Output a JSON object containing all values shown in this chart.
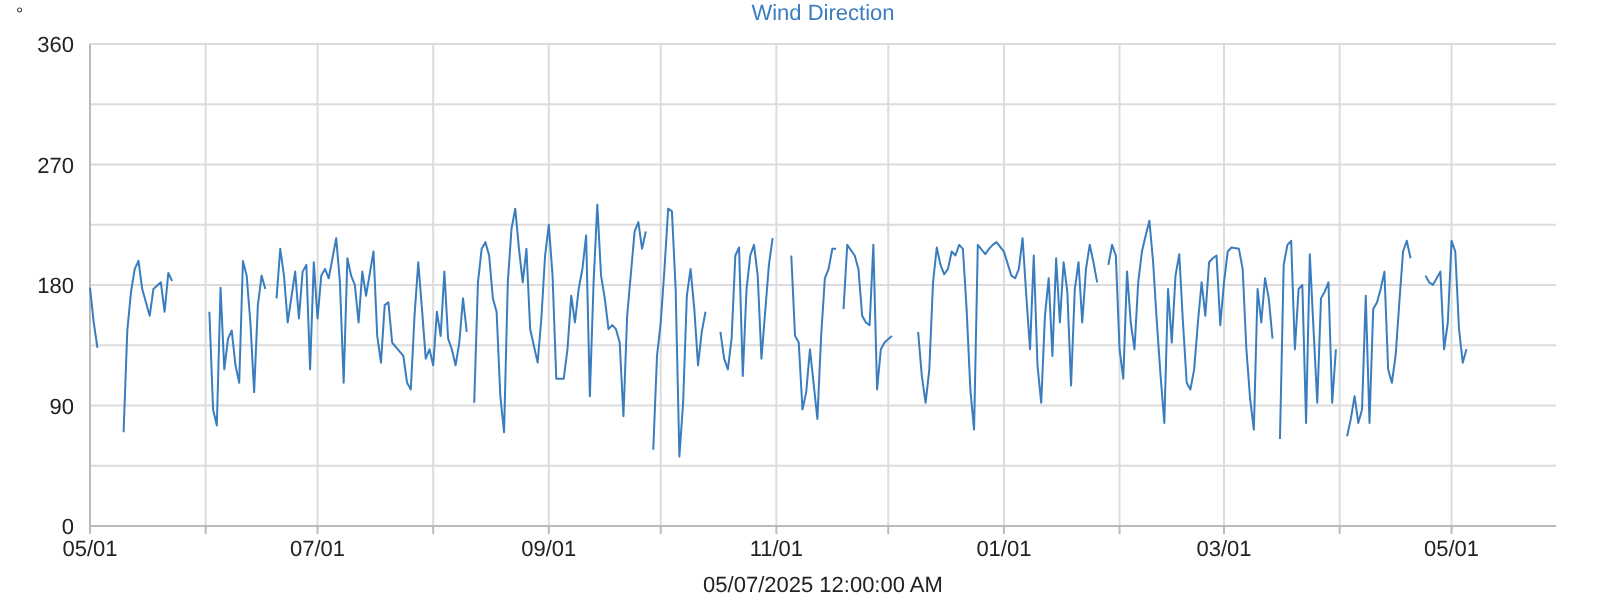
{
  "chart_data": {
    "type": "line",
    "title": "Wind Direction",
    "ylabel": "°",
    "xlabel": "05/07/2025 12:00:00 AM",
    "grid": true,
    "marker": "none",
    "line_style": "solid",
    "ylim": [
      0,
      360
    ],
    "yticks": [
      0,
      {
        "value": 45,
        "label": null
      },
      90,
      {
        "value": 135,
        "label": null
      },
      180,
      {
        "value": 225,
        "label": null
      },
      270,
      {
        "value": 315,
        "label": null
      },
      360
    ],
    "xlim": [
      "2024-05-01",
      "2025-05-29"
    ],
    "xticks": [
      {
        "value": "2024-05-01",
        "label": "05/01"
      },
      {
        "value": "2024-06-01",
        "label": null
      },
      {
        "value": "2024-07-01",
        "label": "07/01"
      },
      {
        "value": "2024-08-01",
        "label": null
      },
      {
        "value": "2024-09-01",
        "label": "09/01"
      },
      {
        "value": "2024-10-01",
        "label": null
      },
      {
        "value": "2024-11-01",
        "label": "11/01"
      },
      {
        "value": "2024-12-01",
        "label": null
      },
      {
        "value": "2025-01-01",
        "label": "01/01"
      },
      {
        "value": "2025-02-01",
        "label": null
      },
      {
        "value": "2025-03-01",
        "label": "03/01"
      },
      {
        "value": "2025-04-01",
        "label": null
      },
      {
        "value": "2025-05-01",
        "label": "05/01"
      }
    ],
    "series": [
      {
        "color": "#3a7dbf",
        "x": [
          "2024-05-01",
          "2024-05-02",
          "2024-05-03",
          "2024-05-07",
          "2024-05-10",
          "2024-05-11",
          "2024-05-12",
          "2024-05-13",
          "2024-05-14",
          "2024-05-15",
          "2024-05-17",
          "2024-05-18",
          "2024-05-20",
          "2024-05-21",
          "2024-05-22",
          "2024-05-23",
          "2024-05-28",
          "2024-06-02",
          "2024-06-03",
          "2024-06-04",
          "2024-06-05",
          "2024-06-06",
          "2024-06-07",
          "2024-06-08",
          "2024-06-09",
          "2024-06-10",
          "2024-06-11",
          "2024-06-12",
          "2024-06-13",
          "2024-06-14",
          "2024-06-15",
          "2024-06-16",
          "2024-06-17",
          "2024-06-19",
          "2024-06-20",
          "2024-06-21",
          "2024-06-22",
          "2024-06-23",
          "2024-06-25",
          "2024-06-26",
          "2024-06-27",
          "2024-06-28",
          "2024-06-29",
          "2024-06-30",
          "2024-07-01",
          "2024-07-02",
          "2024-07-03",
          "2024-07-04",
          "2024-07-06",
          "2024-07-07",
          "2024-07-08",
          "2024-07-09",
          "2024-07-10",
          "2024-07-11",
          "2024-07-12",
          "2024-07-13",
          "2024-07-14",
          "2024-07-16",
          "2024-07-17",
          "2024-07-18",
          "2024-07-19",
          "2024-07-20",
          "2024-07-21",
          "2024-07-24",
          "2024-07-25",
          "2024-07-26",
          "2024-07-27",
          "2024-07-28",
          "2024-07-29",
          "2024-07-30",
          "2024-07-31",
          "2024-08-01",
          "2024-08-02",
          "2024-08-03",
          "2024-08-04",
          "2024-08-05",
          "2024-08-06",
          "2024-08-07",
          "2024-08-08",
          "2024-08-09",
          "2024-08-10",
          "2024-08-11",
          "2024-08-12",
          "2024-08-13",
          "2024-08-14",
          "2024-08-15",
          "2024-08-16",
          "2024-08-17",
          "2024-08-18",
          "2024-08-19",
          "2024-08-20",
          "2024-08-21",
          "2024-08-22",
          "2024-08-23",
          "2024-08-24",
          "2024-08-25",
          "2024-08-26",
          "2024-08-27",
          "2024-08-29",
          "2024-08-30",
          "2024-08-31",
          "2024-09-01",
          "2024-09-02",
          "2024-09-03",
          "2024-09-05",
          "2024-09-06",
          "2024-09-07",
          "2024-09-08",
          "2024-09-09",
          "2024-09-10",
          "2024-09-11",
          "2024-09-12",
          "2024-09-13",
          "2024-09-14",
          "2024-09-15",
          "2024-09-16",
          "2024-09-17",
          "2024-09-18",
          "2024-09-19",
          "2024-09-20",
          "2024-09-21",
          "2024-09-22",
          "2024-09-24",
          "2024-09-25",
          "2024-09-26",
          "2024-09-27",
          "2024-09-28",
          "2024-09-29",
          "2024-09-30",
          "2024-10-01",
          "2024-10-02",
          "2024-10-03",
          "2024-10-04",
          "2024-10-05",
          "2024-10-06",
          "2024-10-07",
          "2024-10-08",
          "2024-10-09",
          "2024-10-10",
          "2024-10-11",
          "2024-10-12",
          "2024-10-13",
          "2024-10-15",
          "2024-10-17",
          "2024-10-18",
          "2024-10-19",
          "2024-10-20",
          "2024-10-21",
          "2024-10-22",
          "2024-10-23",
          "2024-10-24",
          "2024-10-25",
          "2024-10-26",
          "2024-10-27",
          "2024-10-28",
          "2024-10-30",
          "2024-10-31",
          "2024-11-02",
          "2024-11-05",
          "2024-11-06",
          "2024-11-07",
          "2024-11-08",
          "2024-11-09",
          "2024-11-10",
          "2024-11-12",
          "2024-11-13",
          "2024-11-14",
          "2024-11-15",
          "2024-11-16",
          "2024-11-17",
          "2024-11-18",
          "2024-11-19",
          "2024-11-20",
          "2024-11-22",
          "2024-11-23",
          "2024-11-24",
          "2024-11-25",
          "2024-11-26",
          "2024-11-27",
          "2024-11-28",
          "2024-11-29",
          "2024-11-30",
          "2024-12-02",
          "2024-12-05",
          "2024-12-09",
          "2024-12-10",
          "2024-12-11",
          "2024-12-12",
          "2024-12-13",
          "2024-12-14",
          "2024-12-15",
          "2024-12-16",
          "2024-12-17",
          "2024-12-18",
          "2024-12-19",
          "2024-12-20",
          "2024-12-21",
          "2024-12-22",
          "2024-12-23",
          "2024-12-24",
          "2024-12-25",
          "2024-12-27",
          "2024-12-28",
          "2024-12-29",
          "2024-12-30",
          "2025-01-01",
          "2025-01-03",
          "2025-01-04",
          "2025-01-05",
          "2025-01-06",
          "2025-01-07",
          "2025-01-08",
          "2025-01-09",
          "2025-01-10",
          "2025-01-11",
          "2025-01-12",
          "2025-01-13",
          "2025-01-14",
          "2025-01-15",
          "2025-01-16",
          "2025-01-17",
          "2025-01-18",
          "2025-01-19",
          "2025-01-20",
          "2025-01-21",
          "2025-01-22",
          "2025-01-23",
          "2025-01-24",
          "2025-01-25",
          "2025-01-26",
          "2025-01-28",
          "2025-01-29",
          "2025-01-30",
          "2025-01-31",
          "2025-02-01",
          "2025-02-02",
          "2025-02-03",
          "2025-02-04",
          "2025-02-05",
          "2025-02-06",
          "2025-02-07",
          "2025-02-08",
          "2025-02-09",
          "2025-02-10",
          "2025-02-11",
          "2025-02-12",
          "2025-02-13",
          "2025-02-14",
          "2025-02-15",
          "2025-02-16",
          "2025-02-17",
          "2025-02-18",
          "2025-02-19",
          "2025-02-20",
          "2025-02-21",
          "2025-02-22",
          "2025-02-23",
          "2025-02-24",
          "2025-02-25",
          "2025-02-26",
          "2025-02-27",
          "2025-02-28",
          "2025-03-01",
          "2025-03-02",
          "2025-03-03",
          "2025-03-05",
          "2025-03-06",
          "2025-03-07",
          "2025-03-08",
          "2025-03-09",
          "2025-03-10",
          "2025-03-11",
          "2025-03-12",
          "2025-03-13",
          "2025-03-14",
          "2025-03-15",
          "2025-03-16",
          "2025-03-17",
          "2025-03-18",
          "2025-03-19",
          "2025-03-20",
          "2025-03-21",
          "2025-03-22",
          "2025-03-23",
          "2025-03-24",
          "2025-03-25",
          "2025-03-26",
          "2025-03-27",
          "2025-03-28",
          "2025-03-29",
          "2025-03-30",
          "2025-03-31",
          "2025-04-01",
          "2025-04-03",
          "2025-04-04",
          "2025-04-05",
          "2025-04-06",
          "2025-04-07",
          "2025-04-08",
          "2025-04-09",
          "2025-04-10",
          "2025-04-11",
          "2025-04-12",
          "2025-04-13",
          "2025-04-14",
          "2025-04-15",
          "2025-04-16",
          "2025-04-17",
          "2025-04-18",
          "2025-04-19",
          "2025-04-20",
          "2025-04-22",
          "2025-04-24",
          "2025-04-25",
          "2025-04-26",
          "2025-04-28",
          "2025-04-29",
          "2025-04-30",
          "2025-05-01",
          "2025-05-02",
          "2025-05-03",
          "2025-05-04",
          "2025-05-05"
        ],
        "values": [
          178,
          152,
          133,
          null,
          70,
          146,
          175,
          192,
          198,
          177,
          157,
          177,
          182,
          160,
          189,
          183,
          null,
          160,
          87,
          75,
          178,
          117,
          140,
          146,
          120,
          107,
          198,
          187,
          152,
          100,
          165,
          187,
          177,
          null,
          170,
          207,
          187,
          152,
          190,
          155,
          190,
          195,
          117,
          197,
          155,
          187,
          192,
          185,
          215,
          182,
          107,
          200,
          187,
          180,
          152,
          190,
          172,
          205,
          142,
          122,
          165,
          167,
          137,
          127,
          107,
          102,
          157,
          197,
          162,
          125,
          132,
          120,
          160,
          142,
          190,
          140,
          132,
          120,
          137,
          170,
          145,
          null,
          92,
          182,
          207,
          212,
          202,
          170,
          160,
          97,
          70,
          182,
          222,
          237,
          207,
          182,
          207,
          147,
          122,
          155,
          202,
          225,
          187,
          110,
          110,
          132,
          172,
          152,
          177,
          192,
          217,
          97,
          182,
          240,
          187,
          170,
          147,
          150,
          147,
          137,
          82,
          157,
          220,
          227,
          207,
          220,
          null,
          57,
          127,
          152,
          192,
          237,
          235,
          177,
          52,
          92,
          172,
          192,
          162,
          120,
          145,
          160,
          null,
          145,
          125,
          117,
          140,
          202,
          208,
          112,
          177,
          202,
          210,
          187,
          125,
          195,
          215,
          null,
          202,
          142,
          137,
          87,
          100,
          132,
          80,
          142,
          185,
          192,
          207,
          207,
          null,
          162,
          210,
          202,
          192,
          157,
          152,
          150,
          210,
          102,
          132,
          137,
          142,
          null,
          145,
          112,
          92,
          117,
          182,
          208,
          195,
          188,
          192,
          205,
          202,
          210,
          207,
          162,
          102,
          72,
          210,
          203,
          207,
          210,
          212,
          205,
          187,
          185,
          192,
          215,
          172,
          132,
          202,
          120,
          92,
          157,
          185,
          127,
          200,
          152,
          197,
          175,
          105,
          177,
          197,
          152,
          192,
          210,
          197,
          182,
          null,
          195,
          210,
          202,
          132,
          110,
          190,
          152,
          132,
          182,
          205,
          217,
          228,
          197,
          152,
          112,
          77,
          177,
          137,
          187,
          203,
          152,
          107,
          102,
          117,
          152,
          182,
          157,
          197,
          200,
          202,
          150,
          182,
          205,
          208,
          207,
          192,
          132,
          95,
          72,
          177,
          152,
          185,
          170,
          140,
          null,
          65,
          195,
          210,
          213,
          132,
          177,
          180,
          77,
          203,
          147,
          92,
          170,
          175,
          182,
          92,
          132,
          null,
          67,
          80,
          97,
          77,
          87,
          172,
          77,
          162,
          167,
          177,
          190,
          117,
          107,
          127,
          167,
          205,
          213,
          200,
          null,
          187,
          182,
          180,
          190,
          132,
          152,
          213,
          205,
          147,
          122,
          132
        ]
      }
    ]
  }
}
